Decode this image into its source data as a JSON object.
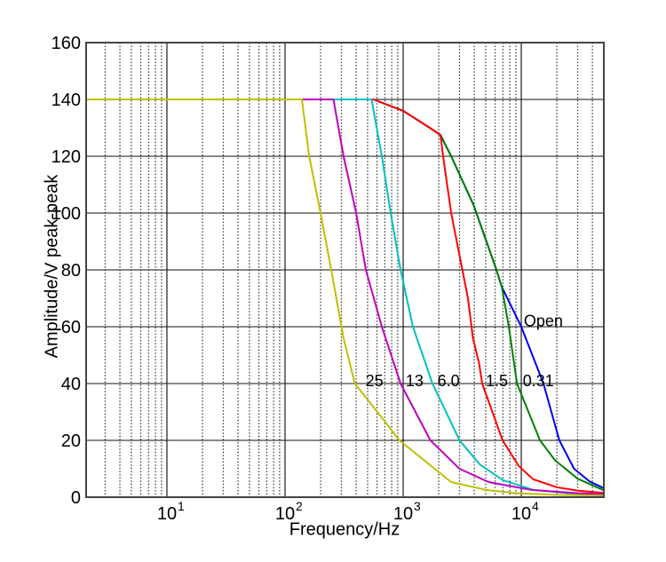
{
  "chart_data": {
    "type": "line",
    "title": "",
    "xlabel": "Frequency/Hz",
    "ylabel": "Amplitude/V peak-peak",
    "x_scale": "log",
    "xlim": [
      2.07,
      50000
    ],
    "ylim": [
      0,
      160
    ],
    "grid": true,
    "legend_position": "inline-annotations",
    "yticks": [
      {
        "value": 0,
        "label": "0"
      },
      {
        "value": 20,
        "label": "20"
      },
      {
        "value": 40,
        "label": "40"
      },
      {
        "value": 60,
        "label": "60"
      },
      {
        "value": 80,
        "label": "80"
      },
      {
        "value": 100,
        "label": "100"
      },
      {
        "value": 120,
        "label": "120"
      },
      {
        "value": 140,
        "label": "140"
      },
      {
        "value": 160,
        "label": "160"
      }
    ],
    "xticks": [
      {
        "value": 10,
        "mantissa": "10",
        "exponent": "1"
      },
      {
        "value": 100,
        "mantissa": "10",
        "exponent": "2"
      },
      {
        "value": 1000,
        "mantissa": "10",
        "exponent": "3"
      },
      {
        "value": 10000,
        "mantissa": "10",
        "exponent": "4"
      }
    ],
    "style": {
      "hline_color": "#111111",
      "major_vline_color": "#555555",
      "minor_vline_color": "#333333",
      "box_color": "#444444",
      "text_color": "#000000",
      "background": "#ffffff"
    },
    "series": [
      {
        "name": "Open",
        "color": "#0000EE",
        "points": [
          [
            2.07,
            140
          ],
          [
            560,
            140
          ],
          [
            1000,
            136
          ],
          [
            1680,
            130
          ],
          [
            2070,
            127.5
          ],
          [
            2550,
            120
          ],
          [
            3930,
            103
          ],
          [
            6050,
            81
          ],
          [
            6840,
            74
          ],
          [
            10000,
            60
          ],
          [
            15400,
            40
          ],
          [
            21000,
            20
          ],
          [
            28000,
            10
          ],
          [
            38000,
            5.5
          ],
          [
            50000,
            3.2
          ]
        ]
      },
      {
        "name": "0.31",
        "color": "#007F00",
        "points": [
          [
            2.07,
            140
          ],
          [
            560,
            140
          ],
          [
            1000,
            136
          ],
          [
            1680,
            130
          ],
          [
            2070,
            127.5
          ],
          [
            2550,
            120
          ],
          [
            3930,
            103
          ],
          [
            6050,
            81
          ],
          [
            6840,
            74
          ],
          [
            7850,
            60
          ],
          [
            9200,
            40
          ],
          [
            14400,
            20
          ],
          [
            19300,
            13
          ],
          [
            30000,
            6.5
          ],
          [
            50000,
            2.4
          ]
        ]
      },
      {
        "name": "1.5",
        "color": "#FF0000",
        "points": [
          [
            2.07,
            140
          ],
          [
            560,
            140
          ],
          [
            1000,
            136
          ],
          [
            1680,
            130
          ],
          [
            2070,
            127.5
          ],
          [
            2180,
            120
          ],
          [
            2550,
            100
          ],
          [
            3100,
            82
          ],
          [
            3540,
            70
          ],
          [
            3900,
            56
          ],
          [
            4400,
            47
          ],
          [
            4670,
            40
          ],
          [
            6950,
            20
          ],
          [
            9500,
            11
          ],
          [
            12600,
            6.3
          ],
          [
            20000,
            3.5
          ],
          [
            30000,
            2.3
          ],
          [
            50000,
            1.5
          ]
        ]
      },
      {
        "name": "6.0",
        "color": "#00BFBF",
        "points": [
          [
            2.07,
            140
          ],
          [
            540,
            140
          ],
          [
            660,
            120
          ],
          [
            785,
            100
          ],
          [
            950,
            80
          ],
          [
            1210,
            60
          ],
          [
            1770,
            40
          ],
          [
            3000,
            20
          ],
          [
            4440,
            11.6
          ],
          [
            7000,
            6
          ],
          [
            12600,
            2.6
          ],
          [
            25000,
            1.4
          ],
          [
            50000,
            0.9
          ]
        ]
      },
      {
        "name": "13",
        "color": "#BF00BF",
        "points": [
          [
            2.07,
            140
          ],
          [
            257,
            140
          ],
          [
            313,
            120
          ],
          [
            400,
            100
          ],
          [
            483,
            80
          ],
          [
            660,
            60
          ],
          [
            950,
            40
          ],
          [
            1700,
            20
          ],
          [
            3000,
            10
          ],
          [
            5300,
            5.3
          ],
          [
            12000,
            2.6
          ],
          [
            30000,
            1.4
          ],
          [
            50000,
            1.1
          ]
        ]
      },
      {
        "name": "25",
        "color": "#BFBF00",
        "points": [
          [
            2.07,
            140
          ],
          [
            139,
            140
          ],
          [
            160,
            120
          ],
          [
            200,
            100
          ],
          [
            246,
            80
          ],
          [
            313,
            56
          ],
          [
            390,
            40
          ],
          [
            660,
            28
          ],
          [
            930,
            20
          ],
          [
            2550,
            5.3
          ],
          [
            5000,
            2.6
          ],
          [
            9000,
            1.4
          ],
          [
            20000,
            0.8
          ],
          [
            50000,
            0.5
          ]
        ]
      }
    ],
    "annotations": [
      {
        "label": "25",
        "f": 480,
        "v": 41
      },
      {
        "label": "13",
        "f": 1050,
        "v": 41
      },
      {
        "label": "6.0",
        "f": 1950,
        "v": 41
      },
      {
        "label": "1.5",
        "f": 5000,
        "v": 41
      },
      {
        "label": "0.31",
        "f": 10300,
        "v": 41
      },
      {
        "label": "Open",
        "f": 10500,
        "v": 62
      }
    ]
  }
}
